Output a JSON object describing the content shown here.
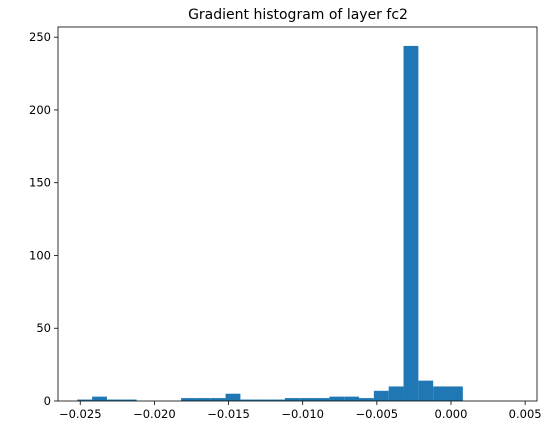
{
  "chart_data": {
    "type": "bar",
    "title": "Gradient histogram of layer fc2",
    "xlabel": "",
    "ylabel": "",
    "bar_color": "#1f77b4",
    "xlim": [
      -0.0265,
      0.0058
    ],
    "ylim": [
      0,
      257
    ],
    "grid": false,
    "legend": "none",
    "x_ticks": [
      {
        "value": -0.025,
        "label": "−0.025"
      },
      {
        "value": -0.02,
        "label": "−0.020"
      },
      {
        "value": -0.015,
        "label": "−0.015"
      },
      {
        "value": -0.01,
        "label": "−0.010"
      },
      {
        "value": -0.005,
        "label": "−0.005"
      },
      {
        "value": 0.0,
        "label": "0.000"
      },
      {
        "value": 0.005,
        "label": "0.005"
      }
    ],
    "y_ticks": [
      {
        "value": 0,
        "label": "0"
      },
      {
        "value": 50,
        "label": "50"
      },
      {
        "value": 100,
        "label": "100"
      },
      {
        "value": 150,
        "label": "150"
      },
      {
        "value": 200,
        "label": "200"
      },
      {
        "value": 250,
        "label": "250"
      }
    ],
    "bins": [
      {
        "x0": -0.0252,
        "x1": -0.0242,
        "count": 1
      },
      {
        "x0": -0.0242,
        "x1": -0.0232,
        "count": 3
      },
      {
        "x0": -0.0232,
        "x1": -0.0222,
        "count": 1
      },
      {
        "x0": -0.0222,
        "x1": -0.0212,
        "count": 1
      },
      {
        "x0": -0.0212,
        "x1": -0.0202,
        "count": 0
      },
      {
        "x0": -0.0202,
        "x1": -0.0192,
        "count": 0
      },
      {
        "x0": -0.0192,
        "x1": -0.0182,
        "count": 0
      },
      {
        "x0": -0.0182,
        "x1": -0.0172,
        "count": 2
      },
      {
        "x0": -0.0172,
        "x1": -0.0162,
        "count": 2
      },
      {
        "x0": -0.0162,
        "x1": -0.0152,
        "count": 2
      },
      {
        "x0": -0.0152,
        "x1": -0.0142,
        "count": 5
      },
      {
        "x0": -0.0142,
        "x1": -0.0132,
        "count": 1
      },
      {
        "x0": -0.0132,
        "x1": -0.0122,
        "count": 1
      },
      {
        "x0": -0.0122,
        "x1": -0.0112,
        "count": 1
      },
      {
        "x0": -0.0112,
        "x1": -0.0102,
        "count": 2
      },
      {
        "x0": -0.0102,
        "x1": -0.0092,
        "count": 2
      },
      {
        "x0": -0.0092,
        "x1": -0.0082,
        "count": 2
      },
      {
        "x0": -0.0082,
        "x1": -0.0072,
        "count": 3
      },
      {
        "x0": -0.0072,
        "x1": -0.0062,
        "count": 3
      },
      {
        "x0": -0.0062,
        "x1": -0.0052,
        "count": 2
      },
      {
        "x0": -0.0052,
        "x1": -0.0042,
        "count": 7
      },
      {
        "x0": -0.0042,
        "x1": -0.0032,
        "count": 10
      },
      {
        "x0": -0.0032,
        "x1": -0.0022,
        "count": 244
      },
      {
        "x0": -0.0022,
        "x1": -0.0012,
        "count": 14
      },
      {
        "x0": -0.0012,
        "x1": -0.0002,
        "count": 10
      },
      {
        "x0": -0.0002,
        "x1": 0.0008,
        "count": 10
      }
    ]
  }
}
